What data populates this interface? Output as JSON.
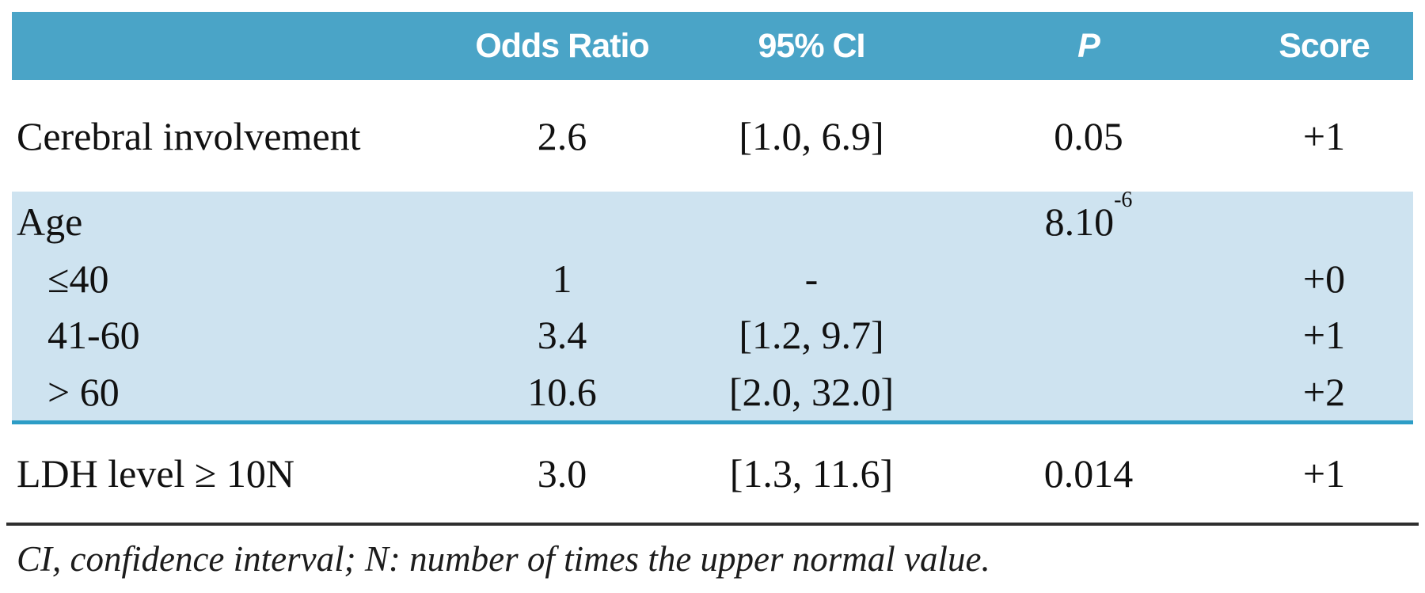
{
  "colors": {
    "header_bg": "#4aa4c7",
    "band_bg": "#cee3f0",
    "divider_teal": "#2d9dc6",
    "rule_dark": "#2e2e2e",
    "header_text": "#ffffff",
    "body_text": "#111111"
  },
  "table": {
    "columns": [
      "",
      "Odds Ratio",
      "95% CI",
      "P",
      "Score"
    ],
    "rows": [
      {
        "label": "Cerebral involvement",
        "or": "2.6",
        "ci": "[1.0, 6.9]",
        "p": "0.05",
        "p_exp": "",
        "score": "+1"
      },
      {
        "label": "Age",
        "or": "",
        "ci": "",
        "p": "8.10",
        "p_exp": "-6",
        "score": ""
      },
      {
        "label": "≤40",
        "or": "1",
        "ci": "-",
        "p": "",
        "p_exp": "",
        "score": "+0"
      },
      {
        "label": "41-60",
        "or": "3.4",
        "ci": "[1.2, 9.7]",
        "p": "",
        "p_exp": "",
        "score": "+1"
      },
      {
        "label": "> 60",
        "or": "10.6",
        "ci": "[2.0, 32.0]",
        "p": "",
        "p_exp": "",
        "score": "+2"
      },
      {
        "label": "LDH level ≥ 10N",
        "or": "3.0",
        "ci": "[1.3, 11.6]",
        "p": "0.014",
        "p_exp": "",
        "score": "+1"
      }
    ],
    "footnote": "CI, confidence interval; N: number of times the upper normal value."
  },
  "chart_data": {
    "type": "table",
    "title": "",
    "columns": [
      "",
      "Odds Ratio",
      "95% CI",
      "P",
      "Score"
    ],
    "rows": [
      [
        "Cerebral involvement",
        "2.6",
        "[1.0, 6.9]",
        "0.05",
        "+1"
      ],
      [
        "Age",
        "",
        "",
        "8.10^-6",
        ""
      ],
      [
        "≤40",
        "1",
        "-",
        "",
        "+0"
      ],
      [
        "41-60",
        "3.4",
        "[1.2, 9.7]",
        "",
        "+1"
      ],
      [
        "> 60",
        "10.6",
        "[2.0, 32.0]",
        "",
        "+2"
      ],
      [
        "LDH level ≥ 10N",
        "3.0",
        "[1.3, 11.6]",
        "0.014",
        "+1"
      ]
    ],
    "footnote": "CI, confidence interval; N: number of times the upper normal value."
  }
}
